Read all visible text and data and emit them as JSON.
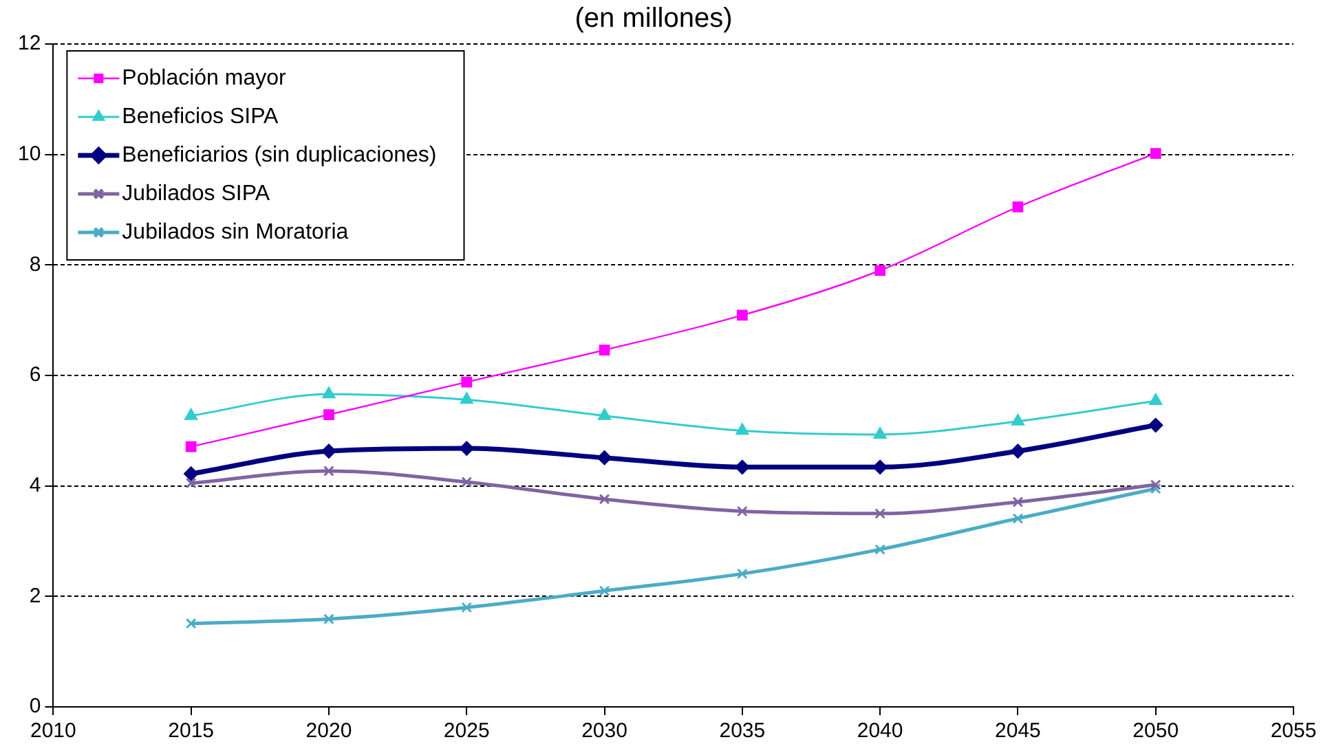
{
  "chart_data": {
    "type": "line",
    "title": "(en millones)",
    "x": [
      2015,
      2020,
      2025,
      2030,
      2035,
      2040,
      2045,
      2050
    ],
    "xlim": [
      2010,
      2055
    ],
    "xticks": [
      2010,
      2015,
      2020,
      2025,
      2030,
      2035,
      2040,
      2045,
      2050,
      2055
    ],
    "ylim": [
      0,
      12
    ],
    "yticks": [
      0,
      2,
      4,
      6,
      8,
      10,
      12
    ],
    "grid": "y",
    "legend": "top left",
    "line_style": "solid",
    "series": [
      {
        "name": "Población mayor",
        "color": "#ff00ff",
        "marker": "square",
        "values": [
          4.71,
          5.29,
          5.88,
          6.46,
          7.09,
          7.9,
          9.05,
          10.02
        ]
      },
      {
        "name": "Beneficios SIPA",
        "color": "#33cccc",
        "marker": "triangle",
        "values": [
          5.27,
          5.66,
          5.56,
          5.27,
          5.0,
          4.93,
          5.17,
          5.54
        ]
      },
      {
        "name": "Beneficiarios (sin duplicaciones)",
        "color": "#000080",
        "marker": "diamond",
        "values": [
          4.22,
          4.63,
          4.68,
          4.51,
          4.34,
          4.34,
          4.63,
          5.1
        ]
      },
      {
        "name": "Jubilados SIPA",
        "color": "#8064a2",
        "marker": "cross",
        "values": [
          4.05,
          4.27,
          4.07,
          3.76,
          3.54,
          3.5,
          3.71,
          4.02
        ]
      },
      {
        "name": "Jubilados sin Moratoria",
        "color": "#4bacc6",
        "marker": "cross",
        "values": [
          1.51,
          1.59,
          1.8,
          2.1,
          2.41,
          2.85,
          3.41,
          3.95
        ]
      }
    ]
  }
}
